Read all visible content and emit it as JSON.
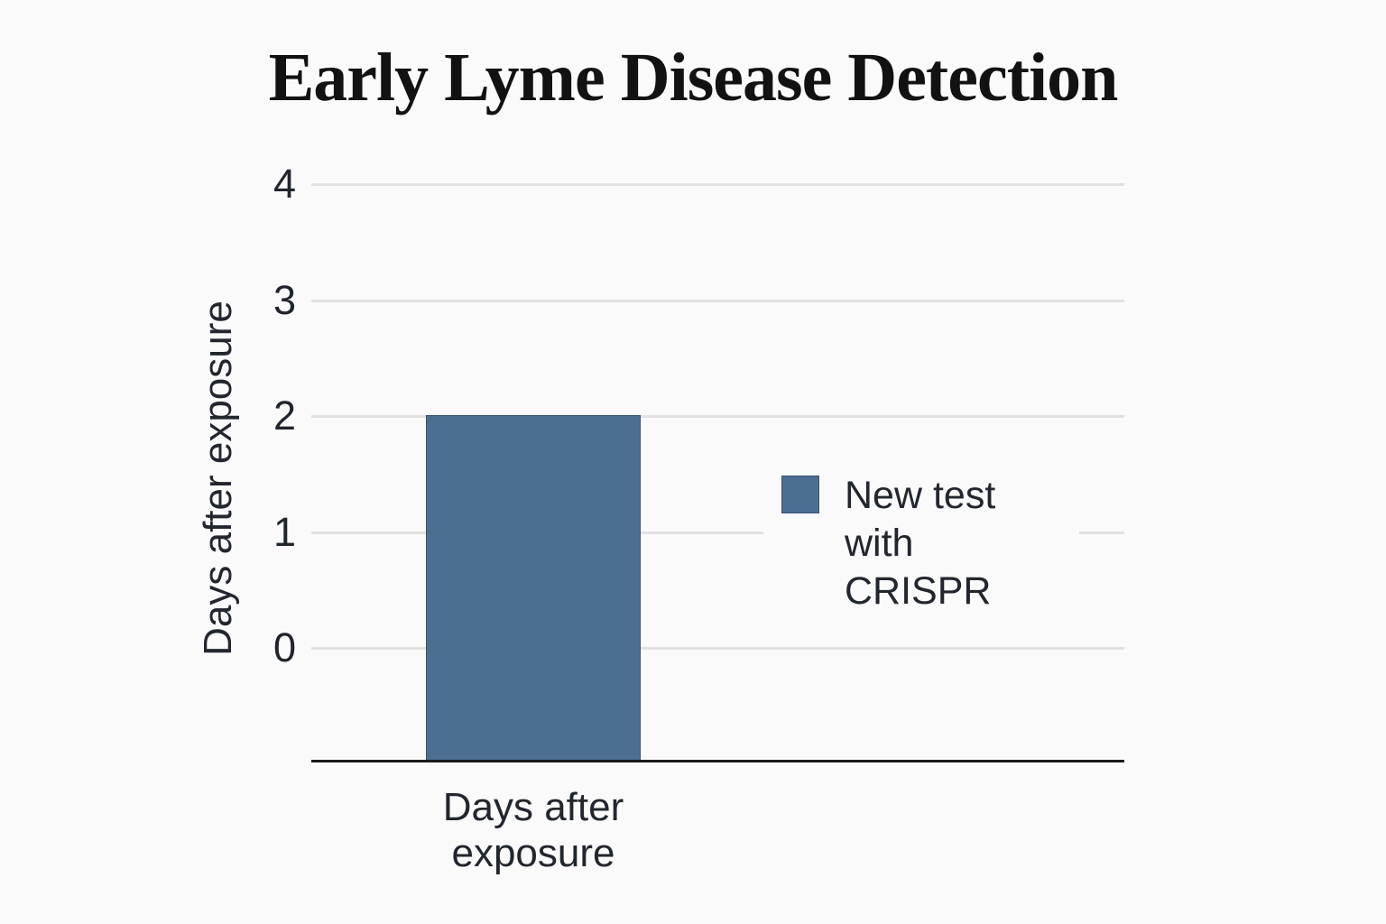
{
  "chart_data": {
    "type": "bar",
    "title": "Early Lyme Disease Detection",
    "categories": [
      "Days after exposure"
    ],
    "series": [
      {
        "name": "New test with CRISPR",
        "values": [
          2
        ],
        "color": "#4d6e93"
      }
    ],
    "xlabel": "",
    "ylabel": "Days after exposure",
    "ylim": [
      -1,
      4
    ],
    "yticks": [
      "4",
      "3",
      "2",
      "1",
      "0"
    ],
    "grid": "horizontal-gridlines-on",
    "legend_position": "right"
  },
  "colors": {
    "background": "#fafafa",
    "bar": "#4d6e93",
    "gridline": "#e1e1e1",
    "axis_line": "#1a1a1a",
    "text": "#22262e",
    "title_text": "#121212"
  }
}
